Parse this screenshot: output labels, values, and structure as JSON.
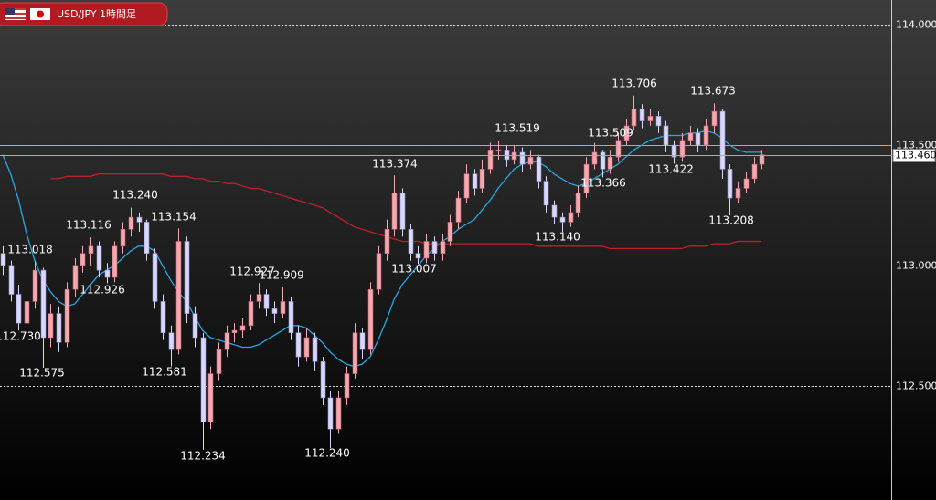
{
  "chart_data": {
    "type": "candlestick",
    "title": "USD/JPY 1時間足",
    "ylim": [
      112.025,
      114.103
    ],
    "yticks": [
      {
        "value": 114,
        "label": "114.000"
      },
      {
        "value": 113.5,
        "label": "113.500"
      },
      {
        "value": 113,
        "label": "113.000"
      },
      {
        "value": 112.5,
        "label": "112.500"
      }
    ],
    "grid": true,
    "hline": {
      "value": 113.5,
      "color": "#e0a060"
    },
    "last_price": {
      "value": 113.46,
      "label": "113.460"
    },
    "up_color": "#f4a8b0",
    "down_color": "#d8d8ff",
    "open": [
      113.05,
      113.0,
      112.88,
      112.76,
      112.85,
      112.98,
      112.7,
      112.8,
      112.68,
      112.9,
      113.0,
      113.05,
      113.08,
      112.98,
      112.95,
      113.08,
      113.15,
      113.2,
      113.18,
      113.05,
      112.85,
      112.72,
      112.65,
      113.1,
      112.8,
      112.7,
      112.35,
      112.55,
      112.65,
      112.72,
      112.73,
      112.75,
      112.85,
      112.88,
      112.82,
      112.8,
      112.85,
      112.72,
      112.62,
      112.7,
      112.6,
      112.45,
      112.32,
      112.45,
      112.55,
      112.72,
      112.65,
      112.9,
      113.05,
      113.15,
      113.3,
      113.15,
      113.05,
      113.03,
      113.1,
      113.05,
      113.1,
      113.18,
      113.28,
      113.38,
      113.32,
      113.4,
      113.48,
      113.48,
      113.44,
      113.47,
      113.42,
      113.45,
      113.35,
      113.25,
      113.2,
      113.18,
      113.22,
      113.3,
      113.42,
      113.47,
      113.4,
      113.45,
      113.52,
      113.58,
      113.65,
      113.6,
      113.62,
      113.58,
      113.5,
      113.45,
      113.52,
      113.55,
      113.5,
      113.58,
      113.64,
      113.4,
      113.28,
      113.32,
      113.36,
      113.42
    ],
    "high": [
      113.08,
      113.02,
      112.92,
      112.88,
      113.018,
      112.99,
      112.84,
      112.83,
      112.93,
      113.03,
      113.08,
      113.116,
      113.1,
      113.01,
      113.1,
      113.18,
      113.24,
      113.22,
      113.19,
      113.07,
      112.88,
      112.75,
      113.154,
      113.12,
      112.83,
      112.72,
      112.58,
      112.68,
      112.75,
      112.76,
      112.78,
      112.88,
      112.927,
      112.9,
      112.85,
      112.909,
      112.87,
      112.75,
      112.74,
      112.72,
      112.62,
      112.48,
      112.48,
      112.58,
      112.76,
      112.74,
      112.93,
      113.08,
      113.19,
      113.374,
      113.32,
      113.17,
      113.08,
      113.13,
      113.12,
      113.13,
      113.21,
      113.31,
      113.42,
      113.4,
      113.44,
      113.51,
      113.519,
      113.5,
      113.5,
      113.49,
      113.48,
      113.46,
      113.37,
      113.27,
      113.22,
      113.25,
      113.33,
      113.45,
      113.509,
      113.48,
      113.48,
      113.55,
      113.61,
      113.706,
      113.67,
      113.65,
      113.64,
      113.6,
      113.52,
      113.55,
      113.58,
      113.57,
      113.61,
      113.673,
      113.65,
      113.42,
      113.35,
      113.39,
      113.45,
      113.48
    ],
    "low": [
      112.96,
      112.85,
      112.73,
      112.74,
      112.82,
      112.575,
      112.66,
      112.64,
      112.66,
      112.87,
      112.97,
      113.0,
      112.95,
      112.926,
      112.93,
      113.05,
      113.12,
      113.14,
      113.02,
      112.82,
      112.69,
      112.581,
      112.63,
      112.76,
      112.66,
      112.234,
      112.32,
      112.52,
      112.62,
      112.68,
      112.7,
      112.73,
      112.82,
      112.79,
      112.76,
      112.78,
      112.69,
      112.58,
      112.6,
      112.56,
      112.42,
      112.24,
      112.3,
      112.42,
      112.53,
      112.61,
      112.63,
      112.88,
      113.02,
      113.12,
      113.12,
      113.02,
      113.007,
      113.01,
      113.02,
      113.02,
      113.08,
      113.15,
      113.26,
      113.29,
      113.3,
      113.38,
      113.44,
      113.41,
      113.42,
      113.39,
      113.4,
      113.32,
      113.22,
      113.17,
      113.14,
      113.16,
      113.2,
      113.28,
      113.4,
      113.366,
      113.38,
      113.43,
      113.5,
      113.56,
      113.57,
      113.58,
      113.55,
      113.47,
      113.422,
      113.43,
      113.5,
      113.47,
      113.48,
      113.55,
      113.36,
      113.208,
      113.26,
      113.3,
      113.34,
      113.4
    ],
    "close": [
      113.0,
      112.88,
      112.76,
      112.85,
      112.98,
      112.7,
      112.8,
      112.68,
      112.9,
      113.0,
      113.05,
      113.08,
      112.98,
      112.95,
      113.08,
      113.15,
      113.2,
      113.18,
      113.05,
      112.85,
      112.72,
      112.65,
      113.1,
      112.8,
      112.7,
      112.35,
      112.55,
      112.65,
      112.72,
      112.73,
      112.75,
      112.85,
      112.88,
      112.82,
      112.8,
      112.85,
      112.72,
      112.62,
      112.7,
      112.6,
      112.45,
      112.32,
      112.45,
      112.55,
      112.72,
      112.65,
      112.9,
      113.05,
      113.15,
      113.3,
      113.15,
      113.05,
      113.03,
      113.1,
      113.05,
      113.1,
      113.18,
      113.28,
      113.38,
      113.32,
      113.4,
      113.48,
      113.48,
      113.44,
      113.47,
      113.42,
      113.45,
      113.35,
      113.25,
      113.2,
      113.18,
      113.22,
      113.3,
      113.42,
      113.47,
      113.4,
      113.45,
      113.52,
      113.58,
      113.65,
      113.6,
      113.62,
      113.58,
      113.5,
      113.45,
      113.52,
      113.55,
      113.5,
      113.58,
      113.64,
      113.4,
      113.28,
      113.32,
      113.36,
      113.42,
      113.46
    ],
    "series": [
      {
        "color": "#2aa8e0",
        "values": [
          113.46,
          113.38,
          113.27,
          113.13,
          113.02,
          112.94,
          112.89,
          112.85,
          112.83,
          112.84,
          112.88,
          112.92,
          112.96,
          112.98,
          113.0,
          113.03,
          113.06,
          113.08,
          113.08,
          113.06,
          113.0,
          112.94,
          112.89,
          112.85,
          112.79,
          112.73,
          112.7,
          112.69,
          112.68,
          112.67,
          112.66,
          112.66,
          112.67,
          112.69,
          112.71,
          112.73,
          112.75,
          112.75,
          112.74,
          112.71,
          112.68,
          112.64,
          112.61,
          112.59,
          112.58,
          112.59,
          112.62,
          112.69,
          112.77,
          112.86,
          112.92,
          112.96,
          113.0,
          113.04,
          113.07,
          113.1,
          113.12,
          113.15,
          113.17,
          113.19,
          113.23,
          113.27,
          113.32,
          113.36,
          113.4,
          113.42,
          113.43,
          113.43,
          113.41,
          113.38,
          113.36,
          113.34,
          113.33,
          113.34,
          113.36,
          113.38,
          113.4,
          113.42,
          113.45,
          113.48,
          113.5,
          113.52,
          113.53,
          113.54,
          113.54,
          113.54,
          113.55,
          113.55,
          113.56,
          113.55,
          113.53,
          113.5,
          113.48,
          113.47,
          113.47,
          113.47
        ]
      },
      {
        "color": "#c0202a",
        "values": [
          null,
          null,
          null,
          null,
          null,
          null,
          113.36,
          113.36,
          113.37,
          113.37,
          113.37,
          113.37,
          113.38,
          113.38,
          113.38,
          113.38,
          113.38,
          113.38,
          113.38,
          113.38,
          113.38,
          113.37,
          113.37,
          113.37,
          113.36,
          113.36,
          113.35,
          113.35,
          113.34,
          113.34,
          113.33,
          113.32,
          113.32,
          113.31,
          113.3,
          113.29,
          113.28,
          113.27,
          113.26,
          113.25,
          113.24,
          113.22,
          113.2,
          113.18,
          113.16,
          113.15,
          113.14,
          113.13,
          113.12,
          113.11,
          113.1,
          113.1,
          113.1,
          113.09,
          113.09,
          113.09,
          113.09,
          113.09,
          113.09,
          113.09,
          113.09,
          113.09,
          113.09,
          113.09,
          113.09,
          113.09,
          113.09,
          113.08,
          113.08,
          113.08,
          113.08,
          113.08,
          113.08,
          113.08,
          113.08,
          113.08,
          113.07,
          113.07,
          113.07,
          113.07,
          113.07,
          113.07,
          113.07,
          113.07,
          113.07,
          113.07,
          113.08,
          113.08,
          113.08,
          113.09,
          113.09,
          113.09,
          113.1,
          113.1,
          113.1,
          113.1
        ]
      }
    ],
    "annotations": [
      "113.018",
      "112.730",
      "112.575",
      "113.116",
      "112.926",
      "113.240",
      "113.154",
      "112.581",
      "112.234",
      "112.927",
      "112.909",
      "112.240",
      "113.374",
      "113.007",
      "113.519",
      "113.140",
      "113.366",
      "113.509",
      "113.706",
      "113.422",
      "113.673",
      "113.208"
    ]
  }
}
